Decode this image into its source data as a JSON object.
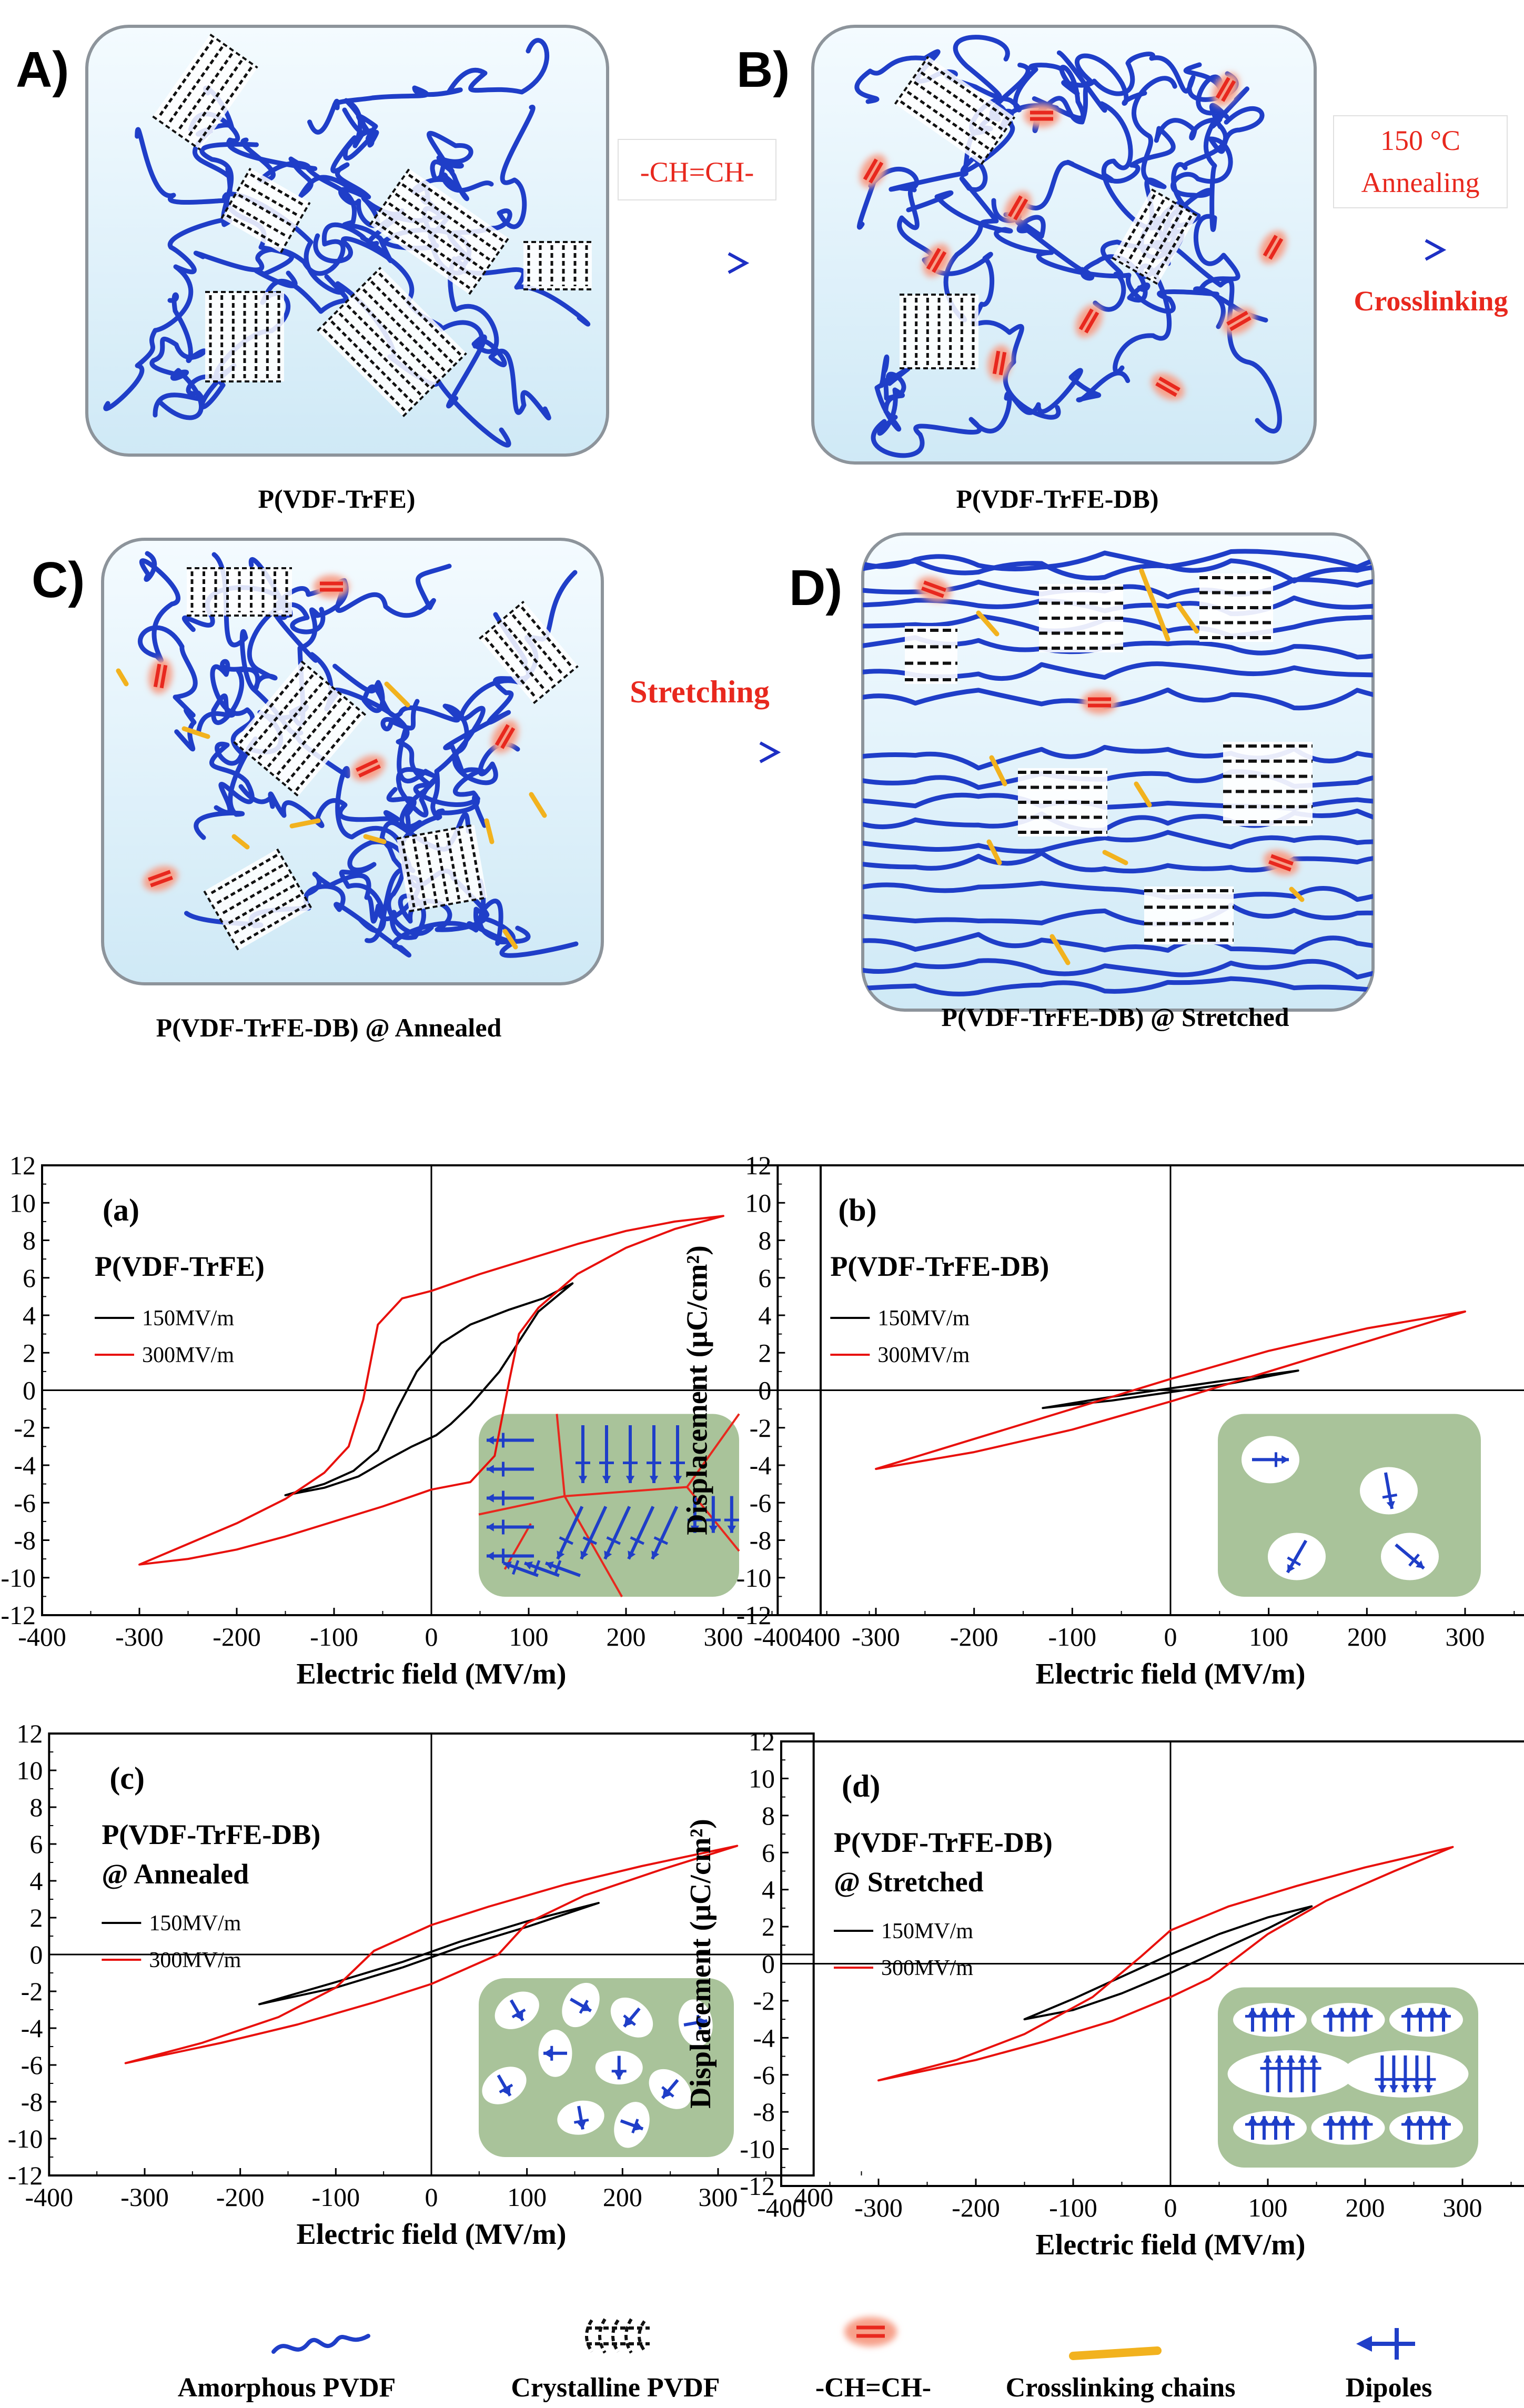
{
  "schematic": {
    "panels": [
      {
        "letter": "A)",
        "caption": "P(VDF-TrFE)"
      },
      {
        "letter": "B)",
        "caption": "P(VDF-TrFE-DB)"
      },
      {
        "letter": "C)",
        "caption": "P(VDF-TrFE-DB) @ Annealed"
      },
      {
        "letter": "D)",
        "caption": "P(VDF-TrFE-DB) @ Stretched"
      }
    ],
    "arrow1_label": "-CH=CH-",
    "arrow2_label_line1": "150 °C",
    "arrow2_label_line2": "Annealing",
    "arrow2_below": "Crosslinking",
    "arrow3_label": "Stretching"
  },
  "chart_data": [
    {
      "type": "line",
      "panel": "(a)",
      "label_line1": "P(VDF-TrFE)",
      "label_line2": "",
      "xlabel": "Electric field (MV/m)",
      "ylabel": "Displacement (μC/cm²)",
      "xlim": [
        -400,
        400
      ],
      "ylim": [
        -12,
        12
      ],
      "series": [
        {
          "name": "150MV/m",
          "color": "#000000",
          "x": [
            -150,
            -110,
            -80,
            -55,
            -35,
            -15,
            10,
            40,
            80,
            115,
            145,
            110,
            70,
            40,
            20,
            5,
            -20,
            -45,
            -75,
            -110,
            -150
          ],
          "y": [
            -5.6,
            -5.0,
            -4.3,
            -3.2,
            -1.0,
            1.0,
            2.5,
            3.5,
            4.3,
            4.9,
            5.7,
            4.2,
            1.0,
            -0.8,
            -1.8,
            -2.4,
            -3.0,
            -3.7,
            -4.6,
            -5.2,
            -5.6
          ]
        },
        {
          "name": "300MV/m",
          "color": "#e8100c",
          "x": [
            -300,
            -250,
            -200,
            -150,
            -110,
            -85,
            -70,
            -55,
            -30,
            0,
            50,
            100,
            150,
            200,
            250,
            300,
            250,
            200,
            150,
            110,
            90,
            80,
            65,
            40,
            0,
            -50,
            -100,
            -150,
            -200,
            -250,
            -300
          ],
          "y": [
            -9.3,
            -8.2,
            -7.1,
            -5.8,
            -4.4,
            -3.0,
            -0.5,
            3.5,
            4.9,
            5.3,
            6.2,
            7.0,
            7.8,
            8.5,
            9.0,
            9.3,
            8.6,
            7.6,
            6.2,
            4.4,
            3.0,
            0.5,
            -3.5,
            -4.9,
            -5.3,
            -6.2,
            -7.0,
            -7.8,
            -8.5,
            -9.0,
            -9.3
          ]
        }
      ],
      "inset": "a"
    },
    {
      "type": "line",
      "panel": "(b)",
      "label_line1": "P(VDF-TrFE-DB)",
      "label_line2": "",
      "xlabel": "Electric field (MV/m)",
      "ylabel": "Displacement (μC/cm²)",
      "xlim": [
        -400,
        400
      ],
      "ylim": [
        -12,
        12
      ],
      "series": [
        {
          "name": "150MV/m",
          "color": "#000000",
          "x": [
            -130,
            -60,
            0,
            60,
            130,
            60,
            0,
            -60,
            -130
          ],
          "y": [
            -0.95,
            -0.35,
            0.1,
            0.55,
            1.05,
            0.35,
            -0.1,
            -0.55,
            -0.95
          ]
        },
        {
          "name": "300MV/m",
          "color": "#e8100c",
          "x": [
            -300,
            -200,
            -100,
            0,
            100,
            200,
            300,
            200,
            100,
            0,
            -100,
            -200,
            -300
          ],
          "y": [
            -4.2,
            -3.3,
            -2.1,
            -0.6,
            1.0,
            2.6,
            4.2,
            3.3,
            2.1,
            0.6,
            -1.0,
            -2.6,
            -4.2
          ]
        }
      ],
      "inset": "b"
    },
    {
      "type": "line",
      "panel": "(c)",
      "label_line1": "P(VDF-TrFE-DB)",
      "label_line2": "@ Annealed",
      "xlabel": "Electric field (MV/m)",
      "ylabel": "Displacement (μC/cm²)",
      "xlim": [
        -400,
        400
      ],
      "ylim": [
        -12,
        12
      ],
      "series": [
        {
          "name": "150MV/m",
          "color": "#000000",
          "x": [
            -180,
            -100,
            -30,
            30,
            100,
            175,
            100,
            30,
            -30,
            -100,
            -180
          ],
          "y": [
            -2.7,
            -1.5,
            -0.4,
            0.7,
            1.8,
            2.8,
            1.5,
            0.4,
            -0.7,
            -1.8,
            -2.7
          ]
        },
        {
          "name": "300MV/m",
          "color": "#e8100c",
          "x": [
            -320,
            -240,
            -160,
            -100,
            -60,
            0,
            60,
            140,
            220,
            320,
            240,
            160,
            100,
            70,
            0,
            -60,
            -140,
            -220,
            -320
          ],
          "y": [
            -5.9,
            -4.8,
            -3.4,
            -1.8,
            0.2,
            1.6,
            2.6,
            3.8,
            4.8,
            5.9,
            4.6,
            3.2,
            1.7,
            0.0,
            -1.6,
            -2.6,
            -3.8,
            -4.8,
            -5.9
          ]
        }
      ],
      "inset": "c"
    },
    {
      "type": "line",
      "panel": "(d)",
      "label_line1": "P(VDF-TrFE-DB)",
      "label_line2": "@ Stretched",
      "xlabel": "Electric field (MV/m)",
      "ylabel": "Displacement (μC/cm²)",
      "xlim": [
        -400,
        400
      ],
      "ylim": [
        -12,
        12
      ],
      "series": [
        {
          "name": "150MV/m",
          "color": "#000000",
          "x": [
            -150,
            -100,
            -50,
            0,
            50,
            100,
            145,
            100,
            50,
            0,
            -50,
            -100,
            -150
          ],
          "y": [
            -3.0,
            -1.9,
            -0.7,
            0.5,
            1.6,
            2.5,
            3.1,
            1.9,
            0.7,
            -0.5,
            -1.6,
            -2.5,
            -3.0
          ]
        },
        {
          "name": "300MV/m",
          "color": "#e8100c",
          "x": [
            -300,
            -220,
            -150,
            -80,
            -30,
            0,
            60,
            130,
            200,
            290,
            230,
            160,
            100,
            40,
            0,
            -60,
            -130,
            -200,
            -300
          ],
          "y": [
            -6.3,
            -5.2,
            -3.8,
            -1.8,
            0.4,
            1.8,
            3.1,
            4.2,
            5.2,
            6.3,
            5.0,
            3.4,
            1.6,
            -0.8,
            -1.8,
            -3.1,
            -4.2,
            -5.2,
            -6.3
          ]
        }
      ],
      "inset": "d"
    }
  ],
  "legend": [
    {
      "label": "Amorphous  PVDF",
      "icon": "amorphous-icon"
    },
    {
      "label": "Crystalline  PVDF",
      "icon": "crystalline-icon"
    },
    {
      "label": "-CH=CH-",
      "icon": "double-bond-icon"
    },
    {
      "label": "Crosslinking  chains",
      "icon": "crosslink-icon"
    },
    {
      "label": "Dipoles",
      "icon": "dipole-icon"
    }
  ],
  "colors": {
    "chain": "#1f3ec8",
    "box_fill": "#d8eef8",
    "box_stroke": "#9aa0a6",
    "double_bond": "#e8281e",
    "glow": "#f7a08a",
    "crosslink": "#f2b21e",
    "inset": "#a9c39a",
    "arrow": "#1d2fc4",
    "red_text": "#e8281e"
  }
}
